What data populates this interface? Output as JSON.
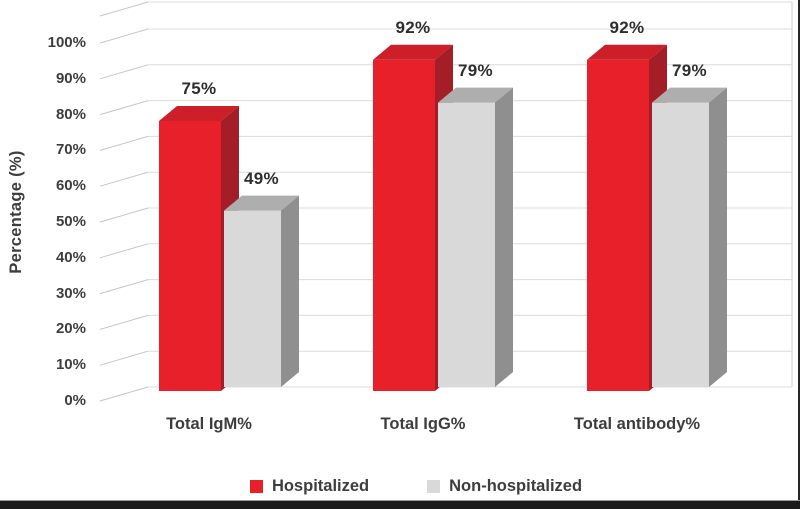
{
  "chart_data": {
    "type": "bar",
    "projection": "3d-clustered-column",
    "title": "",
    "xlabel": "",
    "ylabel": "Percentage (%)",
    "categories": [
      "Total IgM%",
      "Total IgG%",
      "Total antibody%"
    ],
    "series": [
      {
        "name": "Hospitalized",
        "values": [
          75,
          92,
          92
        ],
        "labels": [
          "75%",
          "92%",
          "92%"
        ],
        "color_front": "#e82029",
        "color_top": "#cd1f29",
        "color_side": "#a41e27"
      },
      {
        "name": "Non-hospitalized",
        "values": [
          49,
          79,
          79
        ],
        "labels": [
          "49%",
          "79%",
          "79%"
        ],
        "color_front": "#d9d9d9",
        "color_top": "#aeaeae",
        "color_side": "#8f8f8f"
      }
    ],
    "y_axis": {
      "ticks": [
        "0%",
        "10%",
        "20%",
        "30%",
        "40%",
        "50%",
        "60%",
        "70%",
        "80%",
        "90%",
        "100%"
      ],
      "min": 0,
      "max": 100,
      "major_unit": 10
    },
    "grid": true,
    "legend_position": "bottom"
  },
  "style": {
    "grid_color": "#dcdcdc",
    "leader_color": "#c6c6c6",
    "wall_edge_color": "#d2d2d2",
    "tick_text_color": "#3d3d3d",
    "data_label_color": "#2e2e2e",
    "frame_color": "#1b1b1b"
  }
}
